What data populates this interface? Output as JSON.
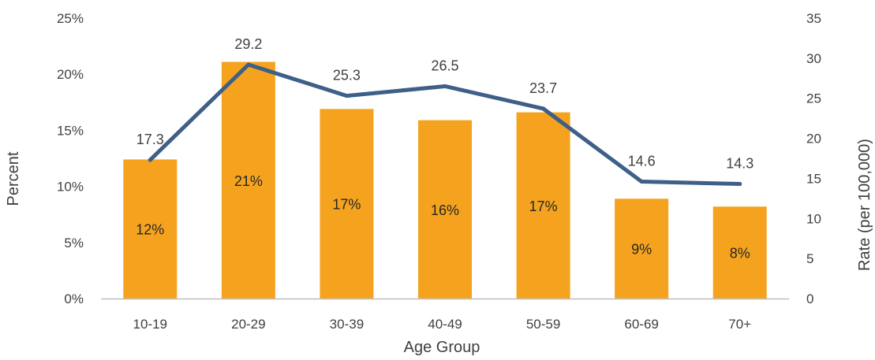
{
  "chart_data": {
    "type": "bar",
    "categories": [
      "10-19",
      "20-29",
      "30-39",
      "40-49",
      "50-59",
      "60-69",
      "70+"
    ],
    "series": [
      {
        "type": "bar",
        "axis": "left",
        "values": [
          12.4,
          21.1,
          16.9,
          15.9,
          16.6,
          8.9,
          8.2
        ],
        "data_labels": [
          "12%",
          "21%",
          "17%",
          "16%",
          "17%",
          "9%",
          "8%"
        ]
      },
      {
        "type": "line",
        "axis": "right",
        "values": [
          17.3,
          29.2,
          25.3,
          26.5,
          23.7,
          14.6,
          14.3
        ],
        "data_labels": [
          "17.3",
          "29.2",
          "25.3",
          "26.5",
          "23.7",
          "14.6",
          "14.3"
        ]
      }
    ],
    "xlabel": "Age Group",
    "ylabel": "Percent",
    "y2label": "Rate (per 100,000)",
    "ylim": [
      0,
      25
    ],
    "y2lim": [
      0,
      35
    ],
    "y_ticks": [
      "0%",
      "5%",
      "10%",
      "15%",
      "20%",
      "25%"
    ],
    "y2_ticks": [
      "0",
      "5",
      "10",
      "15",
      "20",
      "25",
      "30",
      "35"
    ],
    "grid": false,
    "legend": "none",
    "colors": {
      "bar": "#F5A31F",
      "line": "#3E5F87",
      "axis": "#BFBFBF"
    }
  }
}
